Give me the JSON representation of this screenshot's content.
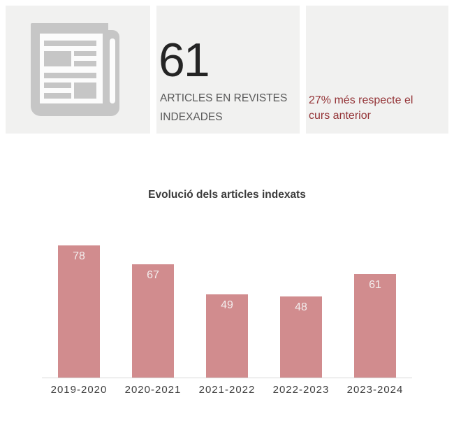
{
  "kpi": {
    "icon": "newspaper-icon",
    "value": "61",
    "label_line1": "ARTICLES EN REVISTES",
    "label_line2": "INDEXADES",
    "delta_line1": "27% més respecte el",
    "delta_line2": "curs anterior"
  },
  "chart_data": {
    "type": "bar",
    "title": "Evolució dels articles indexats",
    "categories": [
      "2019-2020",
      "2020-2021",
      "2021-2022",
      "2022-2023",
      "2023-2024"
    ],
    "values": [
      78,
      67,
      49,
      48,
      61
    ],
    "xlabel": "",
    "ylabel": "",
    "ylim": [
      0,
      78
    ],
    "grid": false,
    "legend": false,
    "data_labels": "inside-top",
    "bar_color": "#d18c8e",
    "data_label_color": "#f3eded",
    "axis_line_color": "#d9d9d9"
  },
  "colors": {
    "card_background": "#f1f1f0",
    "icon_gray": "#c6c6c6",
    "metric_value": "#242424",
    "metric_label": "#595959",
    "delta_text": "#943437",
    "chart_title": "#3b3b3b",
    "category_label": "#3f3f3f"
  }
}
